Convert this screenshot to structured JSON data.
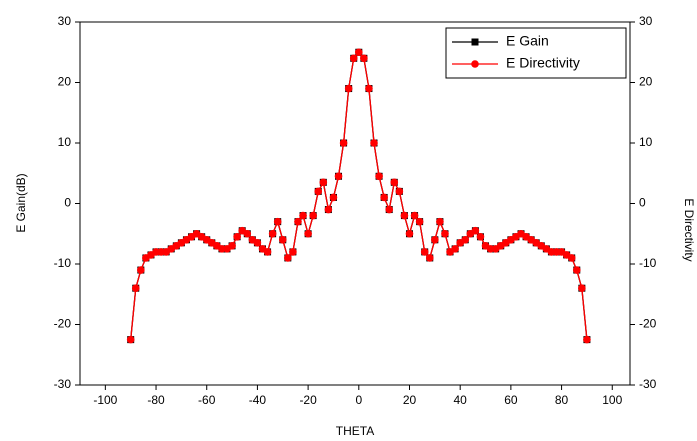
{
  "chart_data": {
    "type": "line",
    "x_label": "THETA",
    "y_label": "E Gain(dB)",
    "y2_label": "E Directivity",
    "x": [
      -90,
      -88,
      -86,
      -84,
      -82,
      -80,
      -78,
      -76,
      -74,
      -72,
      -70,
      -68,
      -66,
      -64,
      -62,
      -60,
      -58,
      -56,
      -54,
      -52,
      -50,
      -48,
      -46,
      -44,
      -42,
      -40,
      -38,
      -36,
      -34,
      -32,
      -30,
      -28,
      -26,
      -24,
      -22,
      -20,
      -18,
      -16,
      -14,
      -12,
      -10,
      -8,
      -6,
      -4,
      -2,
      0,
      2,
      4,
      6,
      8,
      10,
      12,
      14,
      16,
      18,
      20,
      22,
      24,
      26,
      28,
      30,
      32,
      34,
      36,
      38,
      40,
      42,
      44,
      46,
      48,
      50,
      52,
      54,
      56,
      58,
      60,
      62,
      64,
      66,
      68,
      70,
      72,
      74,
      76,
      78,
      80,
      82,
      84,
      86,
      88,
      90
    ],
    "series": [
      {
        "name": "E Gain",
        "color": "#000000",
        "marker": "square",
        "values": [
          -22.5,
          -14,
          -11,
          -9,
          -8.5,
          -8,
          -8,
          -8,
          -7.5,
          -7,
          -6.5,
          -6,
          -5.5,
          -5,
          -5.5,
          -6,
          -6.5,
          -7,
          -7.5,
          -7.5,
          -7,
          -5.5,
          -4.5,
          -5,
          -6,
          -6.5,
          -7.5,
          -8,
          -5,
          -3,
          -6,
          -9,
          -8,
          -3,
          -2,
          -5,
          -2,
          2,
          3.5,
          -1,
          1,
          4.5,
          10,
          19,
          24,
          25,
          24,
          19,
          10,
          4.5,
          1,
          -1,
          3.5,
          2,
          -2,
          -5,
          -2,
          -3,
          -8,
          -9,
          -6,
          -3,
          -5,
          -8,
          -7.5,
          -6.5,
          -6,
          -5,
          -4.5,
          -5.5,
          -7,
          -7.5,
          -7.5,
          -7,
          -6.5,
          -6,
          -5.5,
          -5,
          -5.5,
          -6,
          -6.5,
          -7,
          -7.5,
          -8,
          -8,
          -8,
          -8.5,
          -9,
          -11,
          -14,
          -22.5
        ]
      },
      {
        "name": "E Directivity",
        "color": "#ff0000",
        "marker": "circle",
        "axis": "y2",
        "values": [
          -22.5,
          -14,
          -11,
          -9,
          -8.5,
          -8,
          -8,
          -8,
          -7.5,
          -7,
          -6.5,
          -6,
          -5.5,
          -5,
          -5.5,
          -6,
          -6.5,
          -7,
          -7.5,
          -7.5,
          -7,
          -5.5,
          -4.5,
          -5,
          -6,
          -6.5,
          -7.5,
          -8,
          -5,
          -3,
          -6,
          -9,
          -8,
          -3,
          -2,
          -5,
          -2,
          2,
          3.5,
          -1,
          1,
          4.5,
          10,
          19,
          24,
          25,
          24,
          19,
          10,
          4.5,
          1,
          -1,
          3.5,
          2,
          -2,
          -5,
          -2,
          -3,
          -8,
          -9,
          -6,
          -3,
          -5,
          -8,
          -7.5,
          -6.5,
          -6,
          -5,
          -4.5,
          -5.5,
          -7,
          -7.5,
          -7.5,
          -7,
          -6.5,
          -6,
          -5.5,
          -5,
          -5.5,
          -6,
          -6.5,
          -7,
          -7.5,
          -8,
          -8,
          -8,
          -8.5,
          -9,
          -11,
          -14,
          -22.5
        ]
      }
    ],
    "xlim": [
      -110,
      107
    ],
    "xticks": [
      -100,
      -80,
      -60,
      -40,
      -20,
      0,
      20,
      40,
      60,
      80,
      100
    ],
    "ylim": [
      -30,
      30
    ],
    "yticks": [
      -30,
      -20,
      -10,
      0,
      10,
      20,
      30
    ],
    "y2lim": [
      -30,
      30
    ],
    "y2ticks": [
      -30,
      -20,
      -10,
      0,
      10,
      20,
      30
    ],
    "grid": false,
    "legend": "upper right"
  }
}
